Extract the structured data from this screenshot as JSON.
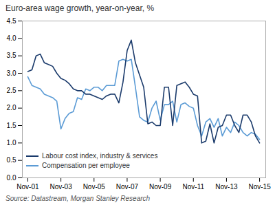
{
  "chart_data": {
    "type": "line",
    "title": "Euro-area wage growth, year-on-year,  %",
    "annotations": [
      "Source: Datastream, Morgan Stanley Research"
    ],
    "x": [
      2001.83,
      2002.08,
      2002.33,
      2002.58,
      2002.83,
      2003.08,
      2003.33,
      2003.58,
      2003.83,
      2004.08,
      2004.33,
      2004.58,
      2004.83,
      2005.08,
      2005.33,
      2005.58,
      2005.83,
      2006.08,
      2006.33,
      2006.58,
      2006.83,
      2007.08,
      2007.33,
      2007.58,
      2007.83,
      2008.08,
      2008.33,
      2008.58,
      2008.83,
      2009.08,
      2009.33,
      2009.58,
      2009.83,
      2010.08,
      2010.33,
      2010.58,
      2010.83,
      2011.08,
      2011.33,
      2011.58,
      2011.83,
      2012.08,
      2012.33,
      2012.58,
      2012.83,
      2013.08,
      2013.33,
      2013.58,
      2013.83,
      2014.08,
      2014.33,
      2014.58,
      2014.83,
      2015.08,
      2015.33,
      2015.58,
      2015.83
    ],
    "series": [
      {
        "name": "Labour cost index, industry & services",
        "color": "#1a3a6b",
        "values": [
          3.05,
          3.1,
          3.5,
          3.55,
          3.3,
          3.25,
          3.2,
          3.0,
          2.85,
          2.8,
          2.7,
          2.55,
          2.5,
          2.5,
          2.4,
          2.4,
          2.35,
          2.3,
          2.25,
          2.35,
          2.4,
          2.4,
          2.15,
          2.75,
          3.65,
          3.95,
          3.3,
          2.95,
          2.6,
          1.55,
          1.6,
          1.5,
          1.5,
          2.6,
          2.6,
          1.5,
          2.65,
          2.7,
          2.75,
          2.6,
          2.4,
          2.35,
          1.0,
          1.05,
          1.55,
          1.0,
          1.45,
          1.5,
          1.8,
          1.8,
          1.5,
          1.3,
          1.8,
          1.8,
          1.6,
          1.2,
          1.0
        ]
      },
      {
        "name": "Compensation per employee",
        "color": "#5b9bd5",
        "values": [
          2.9,
          2.65,
          2.6,
          2.55,
          2.4,
          2.35,
          2.3,
          2.2,
          1.4,
          1.7,
          1.85,
          1.9,
          2.3,
          2.25,
          2.55,
          2.5,
          2.6,
          2.6,
          2.5,
          2.65,
          2.65,
          2.65,
          3.35,
          3.4,
          3.35,
          3.4,
          2.6,
          1.75,
          1.65,
          1.6,
          2.0,
          2.2,
          1.65,
          2.1,
          2.1,
          2.2,
          1.6,
          2.1,
          2.15,
          2.05,
          2.0,
          1.5,
          1.2,
          1.6,
          1.7,
          1.45,
          1.7,
          1.2,
          1.45,
          1.3,
          1.6,
          1.5,
          1.3,
          1.2,
          1.3,
          1.25,
          1.1
        ]
      }
    ],
    "xlim": [
      2001.5,
      2016.2
    ],
    "xticks": [
      {
        "value": 2001.83,
        "label": "Nov-01"
      },
      {
        "value": 2003.83,
        "label": "Nov-03"
      },
      {
        "value": 2005.83,
        "label": "Nov-05"
      },
      {
        "value": 2007.83,
        "label": "Nov-07"
      },
      {
        "value": 2009.83,
        "label": "Nov-09"
      },
      {
        "value": 2011.83,
        "label": "Nov-11"
      },
      {
        "value": 2013.83,
        "label": "Nov-13"
      },
      {
        "value": 2015.83,
        "label": "Nov-15"
      }
    ],
    "ylim": [
      0.0,
      4.5
    ],
    "yticks": [
      {
        "value": 0.0,
        "label": "0.0"
      },
      0.5,
      {
        "value": 1.0,
        "label": "1.0"
      },
      1.5,
      {
        "value": 2.0,
        "label": "2.0"
      },
      2.5,
      {
        "value": 3.0,
        "label": "3.0"
      },
      3.5,
      {
        "value": 4.0,
        "label": "4.0"
      },
      4.5
    ],
    "grid": false,
    "legend": "lower left"
  }
}
